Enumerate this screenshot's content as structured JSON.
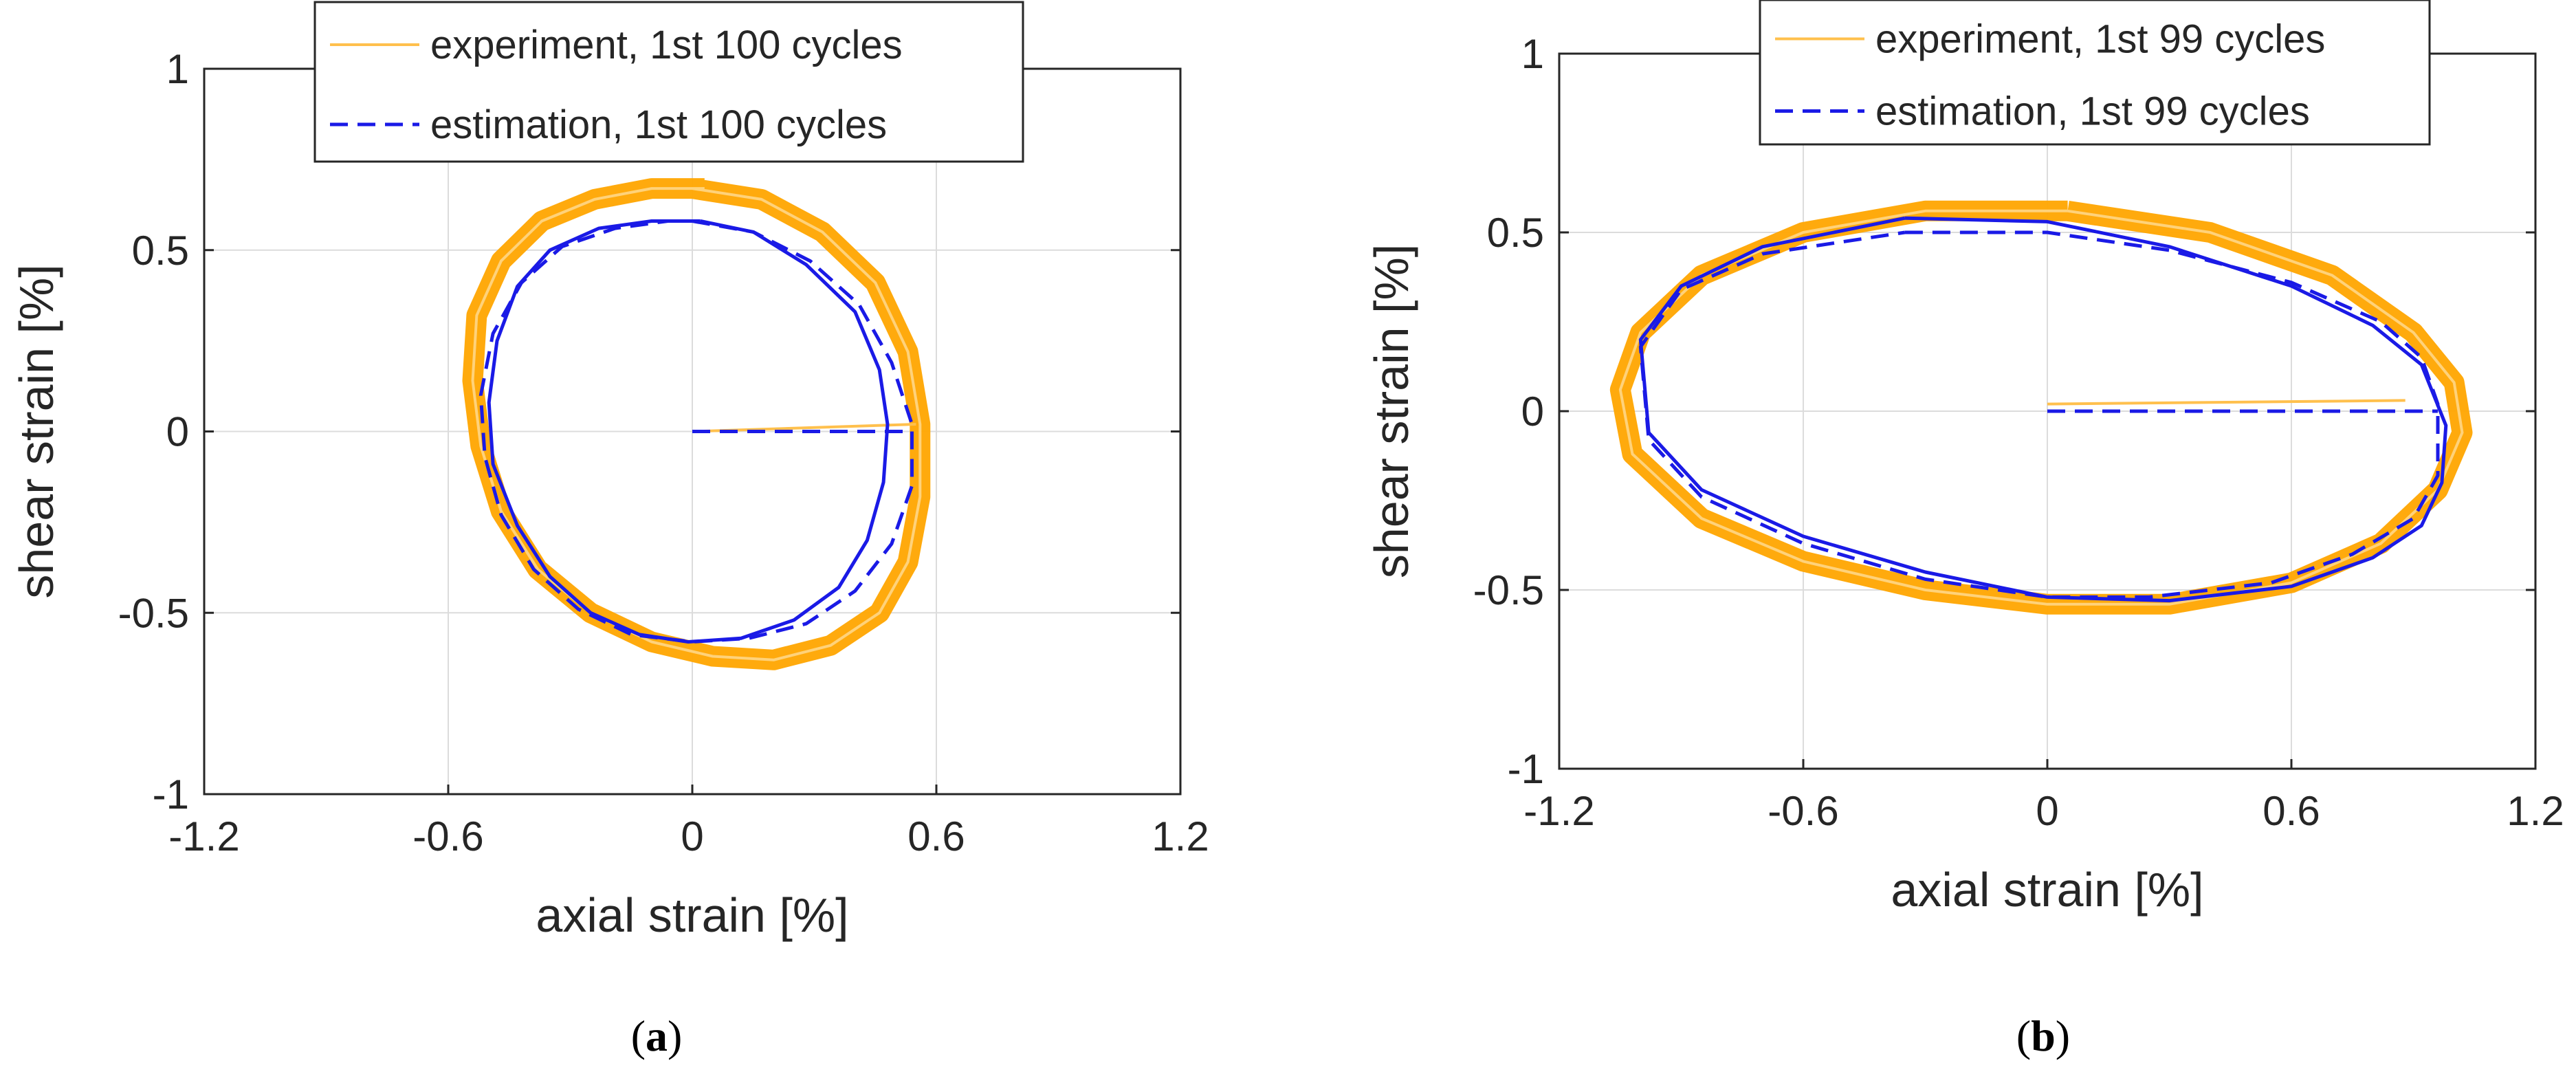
{
  "colors": {
    "experiment": "#FFA500",
    "estimation": "#1A1AE6",
    "axis": "#262626",
    "grid": "#DCDCDC"
  },
  "chart_data": [
    {
      "type": "line",
      "caption_letter": "a",
      "xlabel": "axial strain [%]",
      "ylabel": "shear strain [%]",
      "xlim": [
        -1.2,
        1.2
      ],
      "ylim": [
        -1,
        1
      ],
      "xticks": [
        -1.2,
        -0.6,
        0,
        0.6,
        1.2
      ],
      "yticks": [
        -1,
        -0.5,
        0,
        0.5,
        1
      ],
      "xtick_labels": [
        "-1.2",
        "-0.6",
        "0",
        "0.6",
        "1.2"
      ],
      "ytick_labels": [
        "-1",
        "-0.5",
        "0",
        "0.5",
        "1"
      ],
      "grid": true,
      "legend_position": "top",
      "legend": [
        "experiment, 1st 100 cycles",
        "estimation, 1st 100 cycles"
      ],
      "series": [
        {
          "name": "experiment, 1st 100 cycles",
          "style": "solid",
          "x": [
            0,
            0.17,
            0.32,
            0.45,
            0.53,
            0.56,
            0.56,
            0.53,
            0.46,
            0.34,
            0.2,
            0.05,
            -0.1,
            -0.25,
            -0.38,
            -0.47,
            -0.52,
            -0.54,
            -0.53,
            -0.47,
            -0.37,
            -0.24,
            -0.1,
            0.03
          ],
          "y": [
            0.67,
            0.64,
            0.55,
            0.41,
            0.22,
            0.02,
            -0.18,
            -0.36,
            -0.5,
            -0.59,
            -0.63,
            -0.62,
            -0.58,
            -0.5,
            -0.38,
            -0.22,
            -0.04,
            0.14,
            0.32,
            0.47,
            0.58,
            0.64,
            0.67,
            0.67
          ]
        },
        {
          "name": "experiment, 1st 100 cycles",
          "style": "solid",
          "x": [
            0,
            0.55
          ],
          "y": [
            0,
            0.02
          ]
        },
        {
          "name": "estimation, 1st 100 cycles",
          "style": "solid",
          "x": [
            0.02,
            0.15,
            0.28,
            0.4,
            0.46,
            0.48,
            0.47,
            0.43,
            0.36,
            0.25,
            0.12,
            -0.01,
            -0.13,
            -0.25,
            -0.35,
            -0.43,
            -0.49,
            -0.5,
            -0.48,
            -0.43,
            -0.35,
            -0.23,
            -0.1,
            0.02
          ],
          "y": [
            0.58,
            0.55,
            0.46,
            0.33,
            0.17,
            0.02,
            -0.14,
            -0.3,
            -0.43,
            -0.52,
            -0.57,
            -0.58,
            -0.56,
            -0.5,
            -0.4,
            -0.26,
            -0.09,
            0.08,
            0.25,
            0.4,
            0.5,
            0.56,
            0.58,
            0.58
          ]
        },
        {
          "name": "estimation, 1st 100 cycles",
          "style": "dashed",
          "x": [
            0,
            0.15,
            0.29,
            0.41,
            0.49,
            0.54,
            0.54,
            0.49,
            0.4,
            0.28,
            0.14,
            0,
            -0.15,
            -0.28,
            -0.39,
            -0.47,
            -0.51,
            -0.52,
            -0.49,
            -0.42,
            -0.32,
            -0.19,
            -0.06,
            0
          ],
          "y": [
            0.58,
            0.55,
            0.47,
            0.35,
            0.19,
            0.02,
            -0.15,
            -0.31,
            -0.44,
            -0.53,
            -0.57,
            -0.58,
            -0.56,
            -0.49,
            -0.38,
            -0.23,
            -0.07,
            0.1,
            0.27,
            0.41,
            0.51,
            0.56,
            0.58,
            0.58
          ]
        },
        {
          "name": "estimation, 1st 100 cycles",
          "style": "dashed",
          "x": [
            0,
            0.54
          ],
          "y": [
            0,
            0
          ]
        }
      ]
    },
    {
      "type": "line",
      "caption_letter": "b",
      "xlabel": "axial strain [%]",
      "ylabel": "shear strain [%]",
      "xlim": [
        -1.2,
        1.2
      ],
      "ylim": [
        -1,
        1
      ],
      "xticks": [
        -1.2,
        -0.6,
        0,
        0.6,
        1.2
      ],
      "yticks": [
        -1,
        -0.5,
        0,
        0.5,
        1
      ],
      "xtick_labels": [
        "-1.2",
        "-0.6",
        "0",
        "0.6",
        "1.2"
      ],
      "ytick_labels": [
        "-1",
        "-0.5",
        "0",
        "0.5",
        "1"
      ],
      "grid": true,
      "legend_position": "top",
      "legend": [
        "experiment, 1st 99 cycles",
        "estimation, 1st 99 cycles"
      ],
      "series": [
        {
          "name": "experiment, 1st 99 cycles",
          "style": "solid",
          "x": [
            0.05,
            0.4,
            0.7,
            0.9,
            1.0,
            1.02,
            0.96,
            0.82,
            0.6,
            0.3,
            0,
            -0.3,
            -0.6,
            -0.85,
            -1.02,
            -1.05,
            -1.0,
            -0.85,
            -0.6,
            -0.3,
            0.05
          ],
          "y": [
            0.56,
            0.5,
            0.38,
            0.22,
            0.08,
            -0.06,
            -0.22,
            -0.37,
            -0.48,
            -0.54,
            -0.54,
            -0.5,
            -0.42,
            -0.3,
            -0.12,
            0.06,
            0.22,
            0.38,
            0.5,
            0.56,
            0.56
          ]
        },
        {
          "name": "experiment, 1st 99 cycles",
          "style": "solid",
          "x": [
            0,
            0.88
          ],
          "y": [
            0.02,
            0.03
          ]
        },
        {
          "name": "estimation, 1st 99 cycles",
          "style": "solid",
          "x": [
            -0.35,
            0,
            0.3,
            0.6,
            0.8,
            0.92,
            0.98,
            0.97,
            0.92,
            0.8,
            0.6,
            0.3,
            0,
            -0.3,
            -0.6,
            -0.85,
            -0.98,
            -1.0,
            -0.9,
            -0.7,
            -0.35
          ],
          "y": [
            0.54,
            0.53,
            0.46,
            0.35,
            0.24,
            0.13,
            -0.04,
            -0.2,
            -0.32,
            -0.41,
            -0.49,
            -0.53,
            -0.52,
            -0.45,
            -0.35,
            -0.22,
            -0.06,
            0.2,
            0.35,
            0.46,
            0.54
          ]
        },
        {
          "name": "estimation, 1st 99 cycles",
          "style": "dashed",
          "x": [
            -0.35,
            0,
            0.3,
            0.6,
            0.82,
            0.92,
            0.96,
            0.96,
            0.9,
            0.75,
            0.55,
            0.25,
            0,
            -0.3,
            -0.6,
            -0.85,
            -0.98,
            -1.0,
            -0.9,
            -0.7,
            -0.35
          ],
          "y": [
            0.5,
            0.5,
            0.45,
            0.36,
            0.25,
            0.15,
            0.02,
            -0.18,
            -0.3,
            -0.4,
            -0.48,
            -0.52,
            -0.52,
            -0.47,
            -0.37,
            -0.24,
            -0.08,
            0.18,
            0.34,
            0.44,
            0.5
          ]
        },
        {
          "name": "estimation, 1st 99 cycles",
          "style": "dashed",
          "x": [
            0,
            0.96
          ],
          "y": [
            0,
            0
          ]
        }
      ]
    }
  ]
}
